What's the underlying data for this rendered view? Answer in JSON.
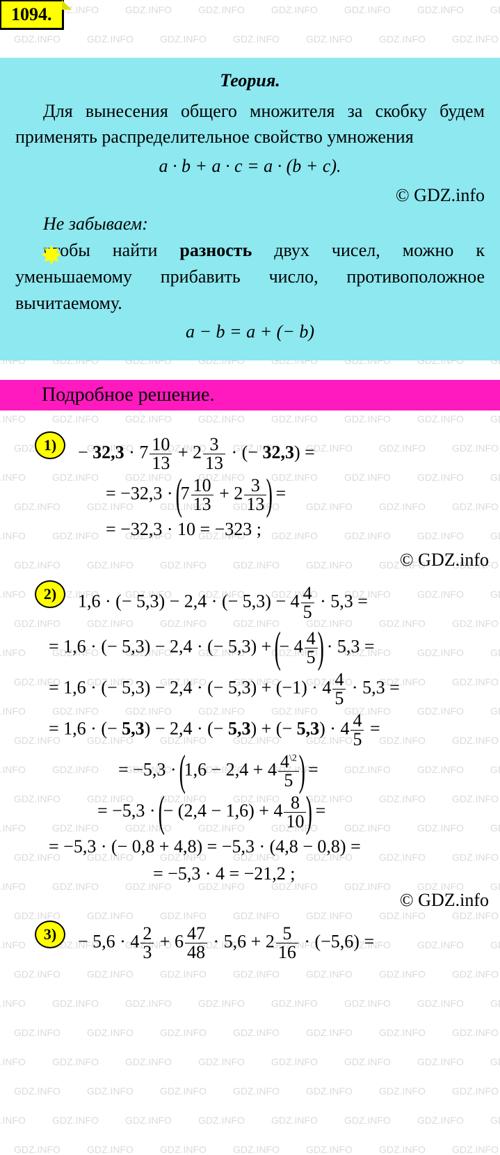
{
  "watermark_text": "GDZ.INFO",
  "watermark_color": "rgba(150,150,150,0.35)",
  "watermark_fontsize": 14,
  "problem_number": "1094.",
  "theory": {
    "bg_color": "#8de8f0",
    "title": "Теория.",
    "para1": "Для вынесения общего множителя за скобку будем применять распредели­тельное свойство умножения",
    "formula1": "a · b + a · c = a · (b + c).",
    "copyright": "© GDZ.info",
    "remember_label": "Не забываем:",
    "note_pre": "чтобы найти ",
    "note_bold": "разность",
    "note_post": " двух чисел, можно к уменьшаемому прибавить чис­ло, противоположное вычитаемому.",
    "formula2": "a − b = a + (− b)"
  },
  "solution_header": "Подробное решение.",
  "answers": {
    "items": [
      "1)",
      "2)",
      "3)"
    ],
    "copyright": "© GDZ.info",
    "p1": {
      "l1_a": "− ",
      "l1_b": "32,3",
      "l1_c": " · 7",
      "l1_f1n": "10",
      "l1_f1d": "13",
      "l1_d": " + 2",
      "l1_f2n": "3",
      "l1_f2d": "13",
      "l1_e": " · (− ",
      "l1_f": "32,3",
      "l1_g": ") =",
      "l2_a": "= −32,3 · ",
      "l2_b": "7",
      "l2_f1n": "10",
      "l2_f1d": "13",
      "l2_c": " + 2",
      "l2_f2n": "3",
      "l2_f2d": "13",
      "l2_d": " =",
      "l3": "= −32,3 · 10 = −323 ;"
    },
    "p2": {
      "l1_a": "1,6 · (− 5,3) − 2,4 · (− 5,3) − 4",
      "l1_fn": "4",
      "l1_fd": "5",
      "l1_b": " · 5,3 =",
      "l2_a": "= 1,6 · (− 5,3) − 2,4 · (− 5,3) + ",
      "l2_b": "− 4",
      "l2_fn": "4",
      "l2_fd": "5",
      "l2_c": " · 5,3 =",
      "l3_a": "= 1,6 · (− 5,3) − 2,4 · (− 5,3) + (−1) · 4",
      "l3_fn": "4",
      "l3_fd": "5",
      "l3_b": " · 5,3 =",
      "l4_a": "= 1,6 · (− ",
      "l4_b": "5,3",
      "l4_c": ") − 2,4 · (− ",
      "l4_d": "5,3",
      "l4_e": ") + (− ",
      "l4_f": "5,3",
      "l4_g": ") · 4",
      "l4_fn": "4",
      "l4_fd": "5",
      "l4_h": " =",
      "l5_a": "= −5,3 · ",
      "l5_b": "1,6 − 2,4 + 4",
      "l5_fn": "4",
      "l5_fd": "5",
      "l5_sup": "\\2",
      "l5_c": " =",
      "l6_a": "= −5,3 · ",
      "l6_b": "− (2,4 − 1,6) + 4",
      "l6_fn": "8",
      "l6_fd": "10",
      "l6_c": " =",
      "l7": "= −5,3 · (− 0,8 + 4,8) = −5,3 · (4,8 − 0,8) =",
      "l8": "= −5,3 · 4 = −21,2 ;"
    },
    "p3": {
      "l1_a": "− 5,6 · 4",
      "l1_f1n": "2",
      "l1_f1d": "3",
      "l1_b": " + 6",
      "l1_f2n": "47",
      "l1_f2d": "48",
      "l1_c": " · 5,6 + 2",
      "l1_f3n": "5",
      "l1_f3d": "16",
      "l1_d": " · (−5,6) ="
    }
  },
  "colors": {
    "yellow": "#ffff00",
    "pink": "#ff1abf",
    "cyan": "#8de8f0",
    "black": "#000000",
    "white": "#ffffff"
  }
}
